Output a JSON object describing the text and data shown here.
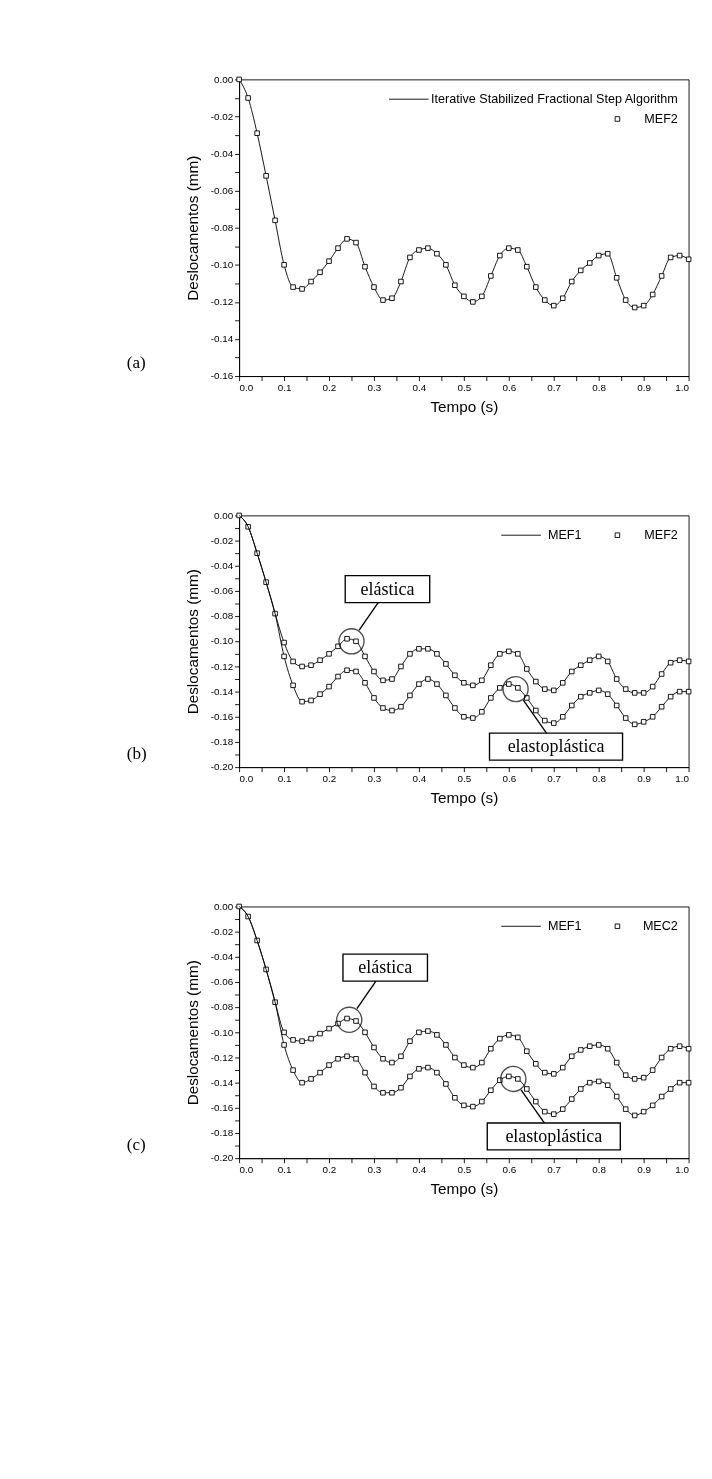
{
  "chart_data": [
    {
      "type": "line",
      "xlabel": "Tempo (s)",
      "ylabel": "Deslocamentos (mm)",
      "xlim": [
        0,
        1
      ],
      "ylim": [
        -0.16,
        0
      ],
      "legend": "top right",
      "grid": false,
      "line_style": "solid",
      "xticks": [
        {
          "value": 0,
          "label": "0.0"
        },
        {
          "value": 0.05,
          "label": null
        },
        {
          "value": 0.1,
          "label": "0.1"
        },
        {
          "value": 0.15,
          "label": null
        },
        {
          "value": 0.2,
          "label": "0.2"
        },
        {
          "value": 0.25,
          "label": null
        },
        {
          "value": 0.3,
          "label": "0.3"
        },
        {
          "value": 0.35,
          "label": null
        },
        {
          "value": 0.4,
          "label": "0.4"
        },
        {
          "value": 0.45,
          "label": null
        },
        {
          "value": 0.5,
          "label": "0.5"
        },
        {
          "value": 0.55,
          "label": null
        },
        {
          "value": 0.6,
          "label": "0.6"
        },
        {
          "value": 0.65,
          "label": null
        },
        {
          "value": 0.7,
          "label": "0.7"
        },
        {
          "value": 0.75,
          "label": null
        },
        {
          "value": 0.8,
          "label": "0.8"
        },
        {
          "value": 0.85,
          "label": null
        },
        {
          "value": 0.9,
          "label": "0.9"
        },
        {
          "value": 0.95,
          "label": null
        },
        {
          "value": 1,
          "label": "1.0"
        }
      ],
      "yticks": [
        {
          "value": -0.16,
          "label": "-0.16"
        },
        {
          "value": -0.15,
          "label": null
        },
        {
          "value": -0.14,
          "label": "-0.14"
        },
        {
          "value": -0.13,
          "label": null
        },
        {
          "value": -0.12,
          "label": "-0.12"
        },
        {
          "value": -0.11,
          "label": null
        },
        {
          "value": -0.1,
          "label": "-0.10"
        },
        {
          "value": -0.09,
          "label": null
        },
        {
          "value": -0.08,
          "label": "-0.08"
        },
        {
          "value": -0.07,
          "label": null
        },
        {
          "value": -0.06,
          "label": "-0.06"
        },
        {
          "value": -0.05,
          "label": null
        },
        {
          "value": -0.04,
          "label": "-0.04"
        },
        {
          "value": -0.03,
          "label": null
        },
        {
          "value": -0.02,
          "label": "-0.02"
        },
        {
          "value": -0.01,
          "label": null
        },
        {
          "value": 0,
          "label": "0.00"
        }
      ],
      "x": [
        0,
        0.02,
        0.04,
        0.06,
        0.08,
        0.1,
        0.12,
        0.14,
        0.16,
        0.18,
        0.2,
        0.22,
        0.24,
        0.26,
        0.28,
        0.3,
        0.32,
        0.34,
        0.36,
        0.38,
        0.4,
        0.42,
        0.44,
        0.46,
        0.48,
        0.5,
        0.52,
        0.54,
        0.56,
        0.58,
        0.6,
        0.62,
        0.64,
        0.66,
        0.68,
        0.7,
        0.72,
        0.74,
        0.76,
        0.78,
        0.8,
        0.82,
        0.84,
        0.86,
        0.88,
        0.9,
        0.92,
        0.94,
        0.96,
        0.98,
        1
      ],
      "series": [
        {
          "name": "Iterative Stabilized Fractional Step Algorithm",
          "type": "line",
          "marker": "none",
          "color": "#000000",
          "values": [
            0,
            -0.01,
            -0.029,
            -0.052,
            -0.076,
            -0.1,
            -0.112,
            -0.113,
            -0.109,
            -0.104,
            -0.098,
            -0.091,
            -0.086,
            -0.088,
            -0.101,
            -0.112,
            -0.119,
            -0.118,
            -0.109,
            -0.096,
            -0.092,
            -0.091,
            -0.094,
            -0.1,
            -0.111,
            -0.117,
            -0.12,
            -0.117,
            -0.106,
            -0.095,
            -0.091,
            -0.092,
            -0.101,
            -0.112,
            -0.119,
            -0.122,
            -0.118,
            -0.109,
            -0.103,
            -0.099,
            -0.095,
            -0.094,
            -0.107,
            -0.119,
            -0.123,
            -0.122,
            -0.116,
            -0.106,
            -0.096,
            -0.095,
            -0.097
          ]
        },
        {
          "name": "MEF2",
          "type": "scatter",
          "marker": "square",
          "color": "#000000",
          "values": [
            0,
            -0.01,
            -0.029,
            -0.052,
            -0.076,
            -0.1,
            -0.112,
            -0.113,
            -0.109,
            -0.104,
            -0.098,
            -0.091,
            -0.086,
            -0.088,
            -0.101,
            -0.112,
            -0.119,
            -0.118,
            -0.109,
            -0.096,
            -0.092,
            -0.091,
            -0.094,
            -0.1,
            -0.111,
            -0.117,
            -0.12,
            -0.117,
            -0.106,
            -0.095,
            -0.091,
            -0.092,
            -0.101,
            -0.112,
            -0.119,
            -0.122,
            -0.118,
            -0.109,
            -0.103,
            -0.099,
            -0.095,
            -0.094,
            -0.107,
            -0.119,
            -0.123,
            -0.122,
            -0.116,
            -0.106,
            -0.096,
            -0.095,
            -0.097
          ]
        }
      ],
      "annotations": [
        "(a)"
      ]
    },
    {
      "type": "line",
      "xlabel": "Tempo (s)",
      "ylabel": "Deslocamentos (mm)",
      "xlim": [
        0,
        1
      ],
      "ylim": [
        -0.2,
        0
      ],
      "legend": "top right",
      "grid": false,
      "line_style": "solid",
      "xticks": [
        {
          "value": 0,
          "label": "0.0"
        },
        {
          "value": 0.05,
          "label": null
        },
        {
          "value": 0.1,
          "label": "0.1"
        },
        {
          "value": 0.15,
          "label": null
        },
        {
          "value": 0.2,
          "label": "0.2"
        },
        {
          "value": 0.25,
          "label": null
        },
        {
          "value": 0.3,
          "label": "0.3"
        },
        {
          "value": 0.35,
          "label": null
        },
        {
          "value": 0.4,
          "label": "0.4"
        },
        {
          "value": 0.45,
          "label": null
        },
        {
          "value": 0.5,
          "label": "0.5"
        },
        {
          "value": 0.55,
          "label": null
        },
        {
          "value": 0.6,
          "label": "0.6"
        },
        {
          "value": 0.65,
          "label": null
        },
        {
          "value": 0.7,
          "label": "0.7"
        },
        {
          "value": 0.75,
          "label": null
        },
        {
          "value": 0.8,
          "label": "0.8"
        },
        {
          "value": 0.85,
          "label": null
        },
        {
          "value": 0.9,
          "label": "0.9"
        },
        {
          "value": 0.95,
          "label": null
        },
        {
          "value": 1,
          "label": "1.0"
        }
      ],
      "yticks": [
        {
          "value": -0.2,
          "label": "-0.20"
        },
        {
          "value": -0.19,
          "label": null
        },
        {
          "value": -0.18,
          "label": "-0.18"
        },
        {
          "value": -0.17,
          "label": null
        },
        {
          "value": -0.16,
          "label": "-0.16"
        },
        {
          "value": -0.15,
          "label": null
        },
        {
          "value": -0.14,
          "label": "-0.14"
        },
        {
          "value": -0.13,
          "label": null
        },
        {
          "value": -0.12,
          "label": "-0.12"
        },
        {
          "value": -0.11,
          "label": null
        },
        {
          "value": -0.1,
          "label": "-0.10"
        },
        {
          "value": -0.09,
          "label": null
        },
        {
          "value": -0.08,
          "label": "-0.08"
        },
        {
          "value": -0.07,
          "label": null
        },
        {
          "value": -0.06,
          "label": "-0.06"
        },
        {
          "value": -0.05,
          "label": null
        },
        {
          "value": -0.04,
          "label": "-0.04"
        },
        {
          "value": -0.03,
          "label": null
        },
        {
          "value": -0.02,
          "label": "-0.02"
        },
        {
          "value": -0.01,
          "label": null
        },
        {
          "value": 0,
          "label": "0.00"
        }
      ],
      "x": [
        0,
        0.02,
        0.04,
        0.06,
        0.08,
        0.1,
        0.12,
        0.14,
        0.16,
        0.18,
        0.2,
        0.22,
        0.24,
        0.26,
        0.28,
        0.3,
        0.32,
        0.34,
        0.36,
        0.38,
        0.4,
        0.42,
        0.44,
        0.46,
        0.48,
        0.5,
        0.52,
        0.54,
        0.56,
        0.58,
        0.6,
        0.62,
        0.64,
        0.66,
        0.68,
        0.7,
        0.72,
        0.74,
        0.76,
        0.78,
        0.8,
        0.82,
        0.84,
        0.86,
        0.88,
        0.9,
        0.92,
        0.94,
        0.96,
        0.98,
        1
      ],
      "series": [
        {
          "name": "MEF1",
          "type": "line",
          "marker": "none",
          "color": "#000000",
          "values": [
            0,
            -0.009,
            -0.03,
            -0.053,
            -0.078,
            -0.101,
            -0.116,
            -0.12,
            -0.119,
            -0.115,
            -0.11,
            -0.104,
            -0.098,
            -0.1,
            -0.112,
            -0.124,
            -0.131,
            -0.13,
            -0.12,
            -0.11,
            -0.106,
            -0.106,
            -0.11,
            -0.118,
            -0.127,
            -0.133,
            -0.135,
            -0.131,
            -0.119,
            -0.11,
            -0.108,
            -0.11,
            -0.122,
            -0.132,
            -0.138,
            -0.139,
            -0.133,
            -0.124,
            -0.119,
            -0.115,
            -0.112,
            -0.116,
            -0.13,
            -0.138,
            -0.141,
            -0.141,
            -0.136,
            -0.126,
            -0.117,
            -0.115,
            -0.116
          ]
        },
        {
          "name": "MEF2",
          "type": "scatter",
          "marker": "square",
          "color": "#000000",
          "values": [
            0,
            -0.009,
            -0.03,
            -0.053,
            -0.078,
            -0.101,
            -0.116,
            -0.12,
            -0.119,
            -0.115,
            -0.11,
            -0.104,
            -0.098,
            -0.1,
            -0.112,
            -0.124,
            -0.131,
            -0.13,
            -0.12,
            -0.11,
            -0.106,
            -0.106,
            -0.11,
            -0.118,
            -0.127,
            -0.133,
            -0.135,
            -0.131,
            -0.119,
            -0.11,
            -0.108,
            -0.11,
            -0.122,
            -0.132,
            -0.138,
            -0.139,
            -0.133,
            -0.124,
            -0.119,
            -0.115,
            -0.112,
            -0.116,
            -0.13,
            -0.138,
            -0.141,
            -0.141,
            -0.136,
            -0.126,
            -0.117,
            -0.115,
            -0.116
          ]
        },
        {
          "type": "line",
          "marker": "none",
          "color": "#000000",
          "values": [
            0,
            -0.009,
            -0.03,
            -0.053,
            -0.078,
            -0.112,
            -0.135,
            -0.148,
            -0.147,
            -0.142,
            -0.136,
            -0.128,
            -0.123,
            -0.124,
            -0.133,
            -0.145,
            -0.153,
            -0.155,
            -0.152,
            -0.143,
            -0.134,
            -0.13,
            -0.134,
            -0.143,
            -0.153,
            -0.16,
            -0.161,
            -0.156,
            -0.145,
            -0.137,
            -0.134,
            -0.137,
            -0.145,
            -0.155,
            -0.163,
            -0.165,
            -0.16,
            -0.151,
            -0.144,
            -0.141,
            -0.139,
            -0.142,
            -0.151,
            -0.161,
            -0.166,
            -0.164,
            -0.16,
            -0.152,
            -0.144,
            -0.14,
            -0.14
          ]
        },
        {
          "type": "scatter",
          "marker": "square",
          "color": "#000000",
          "values": [
            null,
            null,
            null,
            null,
            null,
            -0.112,
            -0.135,
            -0.148,
            -0.147,
            -0.142,
            -0.136,
            -0.128,
            -0.123,
            -0.124,
            -0.133,
            -0.145,
            -0.153,
            -0.155,
            -0.152,
            -0.143,
            -0.134,
            -0.13,
            -0.134,
            -0.143,
            -0.153,
            -0.16,
            -0.161,
            -0.156,
            -0.145,
            -0.137,
            -0.134,
            -0.137,
            -0.145,
            -0.155,
            -0.163,
            -0.165,
            -0.16,
            -0.151,
            -0.144,
            -0.141,
            -0.139,
            -0.142,
            -0.151,
            -0.161,
            -0.166,
            -0.164,
            -0.16,
            -0.152,
            -0.144,
            -0.14,
            -0.14
          ]
        }
      ],
      "annotations": [
        {
          "text": "elástica",
          "x": 0.25,
          "y": -0.1
        },
        {
          "text": "elastoplástica",
          "x": 0.615,
          "y": -0.138
        },
        "(b)"
      ]
    },
    {
      "type": "line",
      "xlabel": "Tempo (s)",
      "ylabel": "Deslocamentos (mm)",
      "xlim": [
        0,
        1
      ],
      "ylim": [
        -0.2,
        0
      ],
      "legend": "top right",
      "grid": false,
      "line_style": "solid",
      "xticks": [
        {
          "value": 0,
          "label": "0.0"
        },
        {
          "value": 0.05,
          "label": null
        },
        {
          "value": 0.1,
          "label": "0.1"
        },
        {
          "value": 0.15,
          "label": null
        },
        {
          "value": 0.2,
          "label": "0.2"
        },
        {
          "value": 0.25,
          "label": null
        },
        {
          "value": 0.3,
          "label": "0.3"
        },
        {
          "value": 0.35,
          "label": null
        },
        {
          "value": 0.4,
          "label": "0.4"
        },
        {
          "value": 0.45,
          "label": null
        },
        {
          "value": 0.5,
          "label": "0.5"
        },
        {
          "value": 0.55,
          "label": null
        },
        {
          "value": 0.6,
          "label": "0.6"
        },
        {
          "value": 0.65,
          "label": null
        },
        {
          "value": 0.7,
          "label": "0.7"
        },
        {
          "value": 0.75,
          "label": null
        },
        {
          "value": 0.8,
          "label": "0.8"
        },
        {
          "value": 0.85,
          "label": null
        },
        {
          "value": 0.9,
          "label": "0.9"
        },
        {
          "value": 0.95,
          "label": null
        },
        {
          "value": 1,
          "label": "1.0"
        }
      ],
      "yticks": [
        {
          "value": -0.2,
          "label": "-0.20"
        },
        {
          "value": -0.19,
          "label": null
        },
        {
          "value": -0.18,
          "label": "-0.18"
        },
        {
          "value": -0.17,
          "label": null
        },
        {
          "value": -0.16,
          "label": "-0.16"
        },
        {
          "value": -0.15,
          "label": null
        },
        {
          "value": -0.14,
          "label": "-0.14"
        },
        {
          "value": -0.13,
          "label": null
        },
        {
          "value": -0.12,
          "label": "-0.12"
        },
        {
          "value": -0.11,
          "label": null
        },
        {
          "value": -0.1,
          "label": "-0.10"
        },
        {
          "value": -0.09,
          "label": null
        },
        {
          "value": -0.08,
          "label": "-0.08"
        },
        {
          "value": -0.07,
          "label": null
        },
        {
          "value": -0.06,
          "label": "-0.06"
        },
        {
          "value": -0.05,
          "label": null
        },
        {
          "value": -0.04,
          "label": "-0.04"
        },
        {
          "value": -0.03,
          "label": null
        },
        {
          "value": -0.02,
          "label": "-0.02"
        },
        {
          "value": -0.01,
          "label": null
        },
        {
          "value": 0,
          "label": "0.00"
        }
      ],
      "x": [
        0,
        0.02,
        0.04,
        0.06,
        0.08,
        0.1,
        0.12,
        0.14,
        0.16,
        0.18,
        0.2,
        0.22,
        0.24,
        0.26,
        0.28,
        0.3,
        0.32,
        0.34,
        0.36,
        0.38,
        0.4,
        0.42,
        0.44,
        0.46,
        0.48,
        0.5,
        0.52,
        0.54,
        0.56,
        0.58,
        0.6,
        0.62,
        0.64,
        0.66,
        0.68,
        0.7,
        0.72,
        0.74,
        0.76,
        0.78,
        0.8,
        0.82,
        0.84,
        0.86,
        0.88,
        0.9,
        0.92,
        0.94,
        0.96,
        0.98,
        1
      ],
      "series": [
        {
          "name": "MEF1",
          "type": "line",
          "marker": "none",
          "color": "#000000",
          "values": [
            0,
            -0.008,
            -0.027,
            -0.05,
            -0.076,
            -0.1,
            -0.106,
            -0.107,
            -0.105,
            -0.101,
            -0.097,
            -0.093,
            -0.089,
            -0.091,
            -0.1,
            -0.112,
            -0.121,
            -0.124,
            -0.119,
            -0.107,
            -0.1,
            -0.099,
            -0.102,
            -0.11,
            -0.12,
            -0.126,
            -0.128,
            -0.124,
            -0.113,
            -0.105,
            -0.102,
            -0.104,
            -0.115,
            -0.125,
            -0.132,
            -0.133,
            -0.128,
            -0.119,
            -0.114,
            -0.111,
            -0.11,
            -0.113,
            -0.124,
            -0.134,
            -0.137,
            -0.136,
            -0.13,
            -0.12,
            -0.113,
            -0.111,
            -0.113
          ]
        },
        {
          "name": "MEC2",
          "type": "scatter",
          "marker": "square",
          "color": "#000000",
          "values": [
            0,
            -0.008,
            -0.027,
            -0.05,
            -0.076,
            -0.1,
            -0.106,
            -0.107,
            -0.105,
            -0.101,
            -0.097,
            -0.093,
            -0.089,
            -0.091,
            -0.1,
            -0.112,
            -0.121,
            -0.124,
            -0.119,
            -0.107,
            -0.1,
            -0.099,
            -0.102,
            -0.11,
            -0.12,
            -0.126,
            -0.128,
            -0.124,
            -0.113,
            -0.105,
            -0.102,
            -0.104,
            -0.115,
            -0.125,
            -0.132,
            -0.133,
            -0.128,
            -0.119,
            -0.114,
            -0.111,
            -0.11,
            -0.113,
            -0.124,
            -0.134,
            -0.137,
            -0.136,
            -0.13,
            -0.12,
            -0.113,
            -0.111,
            -0.113
          ]
        },
        {
          "type": "line",
          "marker": "none",
          "color": "#000000",
          "values": [
            0,
            -0.008,
            -0.027,
            -0.05,
            -0.076,
            -0.11,
            -0.13,
            -0.14,
            -0.137,
            -0.132,
            -0.126,
            -0.121,
            -0.119,
            -0.121,
            -0.132,
            -0.143,
            -0.148,
            -0.148,
            -0.144,
            -0.135,
            -0.129,
            -0.128,
            -0.132,
            -0.141,
            -0.152,
            -0.158,
            -0.159,
            -0.155,
            -0.146,
            -0.138,
            -0.135,
            -0.137,
            -0.145,
            -0.155,
            -0.163,
            -0.165,
            -0.161,
            -0.153,
            -0.145,
            -0.14,
            -0.139,
            -0.142,
            -0.151,
            -0.161,
            -0.166,
            -0.163,
            -0.158,
            -0.151,
            -0.145,
            -0.14,
            -0.14
          ]
        },
        {
          "type": "scatter",
          "marker": "square",
          "color": "#000000",
          "values": [
            null,
            null,
            null,
            null,
            null,
            -0.11,
            -0.13,
            -0.14,
            -0.137,
            -0.132,
            -0.126,
            -0.121,
            -0.119,
            -0.121,
            -0.132,
            -0.143,
            -0.148,
            -0.148,
            -0.144,
            -0.135,
            -0.129,
            -0.128,
            -0.132,
            -0.141,
            -0.152,
            -0.158,
            -0.159,
            -0.155,
            -0.146,
            -0.138,
            -0.135,
            -0.137,
            -0.145,
            -0.155,
            -0.163,
            -0.165,
            -0.161,
            -0.153,
            -0.145,
            -0.14,
            -0.139,
            -0.142,
            -0.151,
            -0.161,
            -0.166,
            -0.163,
            -0.158,
            -0.151,
            -0.145,
            -0.14,
            -0.14
          ]
        }
      ],
      "annotations": [
        {
          "text": "elástica",
          "x": 0.245,
          "y": -0.09
        },
        {
          "text": "elastoplástica",
          "x": 0.61,
          "y": -0.137
        },
        "(c)"
      ]
    }
  ]
}
